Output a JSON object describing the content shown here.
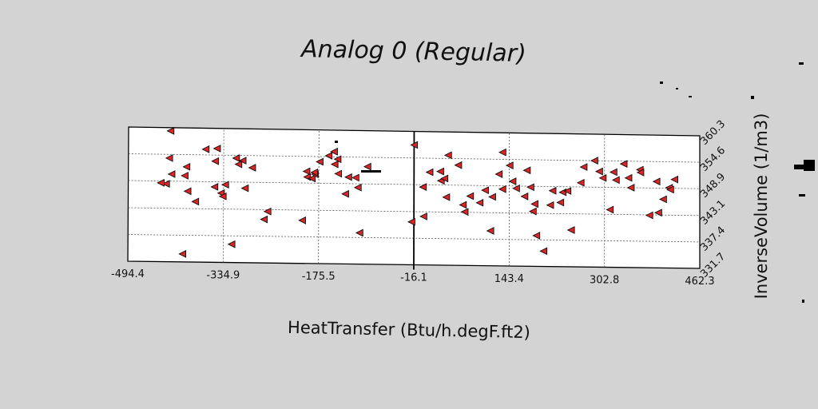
{
  "chart_data": {
    "type": "scatter",
    "title": "Analog 0 (Regular)",
    "xlabel": "HeatTransfer (Btu/h.degF.ft2)",
    "ylabel": "InverseVolume (1/m3)",
    "xlim": [
      -494.4,
      462.3
    ],
    "ylim": [
      331.7,
      360.3
    ],
    "x_ticks": [
      "-494.4",
      "-334.9",
      "-175.5",
      "-16.1",
      "143.4",
      "302.8",
      "462.3"
    ],
    "y_ticks": [
      "331.7",
      "337.4",
      "343.1",
      "348.9",
      "354.6",
      "360.3"
    ],
    "grid": true,
    "marker": "left-triangle",
    "marker_color": "#d62728",
    "series": [
      {
        "points": [
          [
            -424,
            359.6
          ],
          [
            -426,
            353.8
          ],
          [
            -422,
            350.4
          ],
          [
            -431,
            348.3
          ],
          [
            -440,
            348.5
          ],
          [
            -397,
            352.0
          ],
          [
            -400,
            350.1
          ],
          [
            -395,
            346.8
          ],
          [
            -382,
            344.6
          ],
          [
            -403,
            333.4
          ],
          [
            -365,
            355.8
          ],
          [
            -346,
            356.0
          ],
          [
            -349,
            353.3
          ],
          [
            -350,
            347.8
          ],
          [
            -339,
            346.5
          ],
          [
            -336,
            345.8
          ],
          [
            -332,
            348.3
          ],
          [
            -314,
            354.0
          ],
          [
            -303,
            353.5
          ],
          [
            -310,
            352.7
          ],
          [
            -299,
            347.6
          ],
          [
            -287,
            352.0
          ],
          [
            -267,
            341.0
          ],
          [
            -261,
            342.7
          ],
          [
            -321,
            335.6
          ],
          [
            -196,
            351.4
          ],
          [
            -195,
            350.2
          ],
          [
            -187,
            349.9
          ],
          [
            -182,
            350.8
          ],
          [
            -174,
            353.5
          ],
          [
            -159,
            354.8
          ],
          [
            -150,
            355.7
          ],
          [
            -144,
            354.1
          ],
          [
            -149,
            353.0
          ],
          [
            -143,
            351.0
          ],
          [
            -131,
            346.7
          ],
          [
            -126,
            350.3
          ],
          [
            -110,
            348.1
          ],
          [
            -114,
            350.2
          ],
          [
            -94,
            352.6
          ],
          [
            -107,
            338.4
          ],
          [
            -203,
            340.9
          ],
          [
            -183,
            351.2
          ],
          [
            -16,
            357.4
          ],
          [
            -20,
            340.9
          ],
          [
            -1,
            348.4
          ],
          [
            0,
            342.1
          ],
          [
            10,
            351.6
          ],
          [
            28,
            351.8
          ],
          [
            29,
            349.8
          ],
          [
            35,
            350.3
          ],
          [
            38,
            346.3
          ],
          [
            41,
            355.3
          ],
          [
            58,
            353.2
          ],
          [
            66,
            344.7
          ],
          [
            69,
            343.2
          ],
          [
            78,
            346.6
          ],
          [
            94,
            345.2
          ],
          [
            103,
            347.9
          ],
          [
            115,
            346.5
          ],
          [
            112,
            339.2
          ],
          [
            126,
            351.4
          ],
          [
            132,
            356.1
          ],
          [
            132,
            348.2
          ],
          [
            144,
            353.3
          ],
          [
            149,
            349.9
          ],
          [
            155,
            348.4
          ],
          [
            169,
            346.7
          ],
          [
            173,
            352.3
          ],
          [
            179,
            348.7
          ],
          [
            183,
            343.5
          ],
          [
            186,
            345.1
          ],
          [
            189,
            338.3
          ],
          [
            201,
            335.0
          ],
          [
            216,
            348.0
          ],
          [
            212,
            344.9
          ],
          [
            229,
            345.5
          ],
          [
            233,
            347.7
          ],
          [
            241,
            348.0
          ],
          [
            247,
            339.6
          ],
          [
            263,
            349.8
          ],
          [
            268,
            353.2
          ],
          [
            286,
            354.6
          ],
          [
            294,
            352.3
          ],
          [
            300,
            350.9
          ],
          [
            312,
            344.1
          ],
          [
            318,
            352.2
          ],
          [
            322,
            350.5
          ],
          [
            335,
            354.0
          ],
          [
            343,
            351.0
          ],
          [
            347,
            348.9
          ],
          [
            362,
            352.8
          ],
          [
            363,
            352.2
          ],
          [
            390,
            350.3
          ],
          [
            401,
            346.5
          ],
          [
            378,
            343.0
          ],
          [
            393,
            343.6
          ],
          [
            411,
            349.0
          ],
          [
            413,
            348.6
          ],
          [
            420,
            350.8
          ]
        ]
      }
    ]
  }
}
